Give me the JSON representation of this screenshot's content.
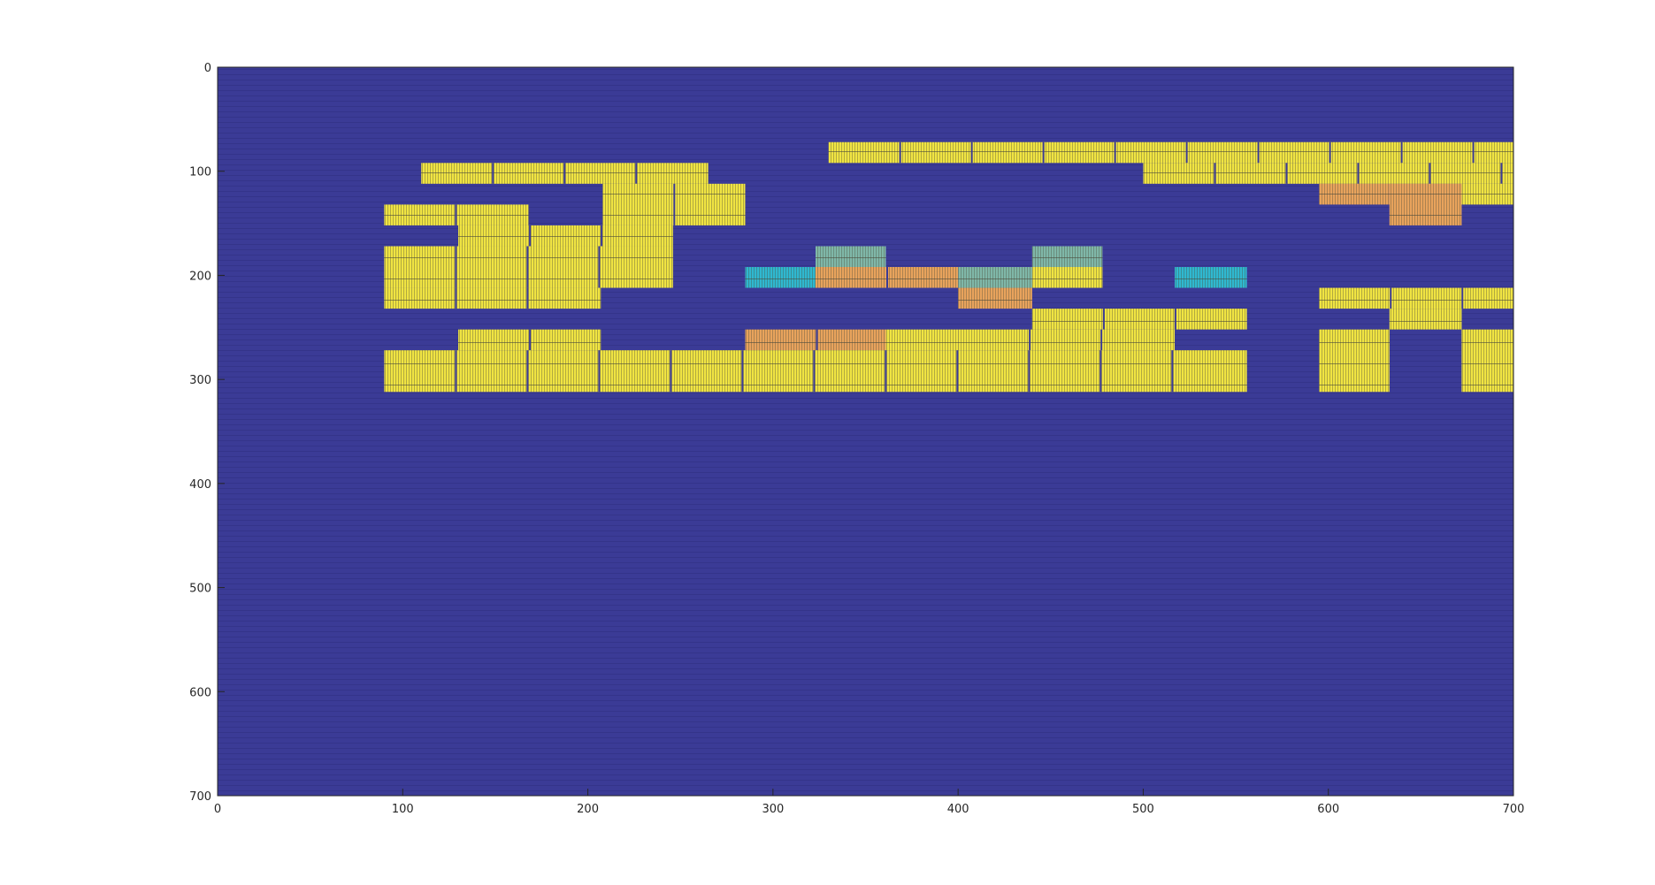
{
  "chart_data": {
    "type": "heatmap",
    "title": "",
    "xlabel": "",
    "ylabel": "",
    "xlim": [
      0,
      700
    ],
    "ylim": [
      0,
      700
    ],
    "y_direction": "reverse",
    "x_ticks": [
      0,
      100,
      200,
      300,
      400,
      500,
      600,
      700
    ],
    "y_ticks": [
      0,
      100,
      200,
      300,
      400,
      500,
      600,
      700
    ],
    "x_tick_labels": [
      "0",
      "100",
      "200",
      "300",
      "400",
      "500",
      "600",
      "700"
    ],
    "y_tick_labels": [
      "0",
      "100",
      "200",
      "300",
      "400",
      "500",
      "600",
      "700"
    ],
    "grid": false,
    "colors": {
      "background": "#3b3b96",
      "cell_yellow": "#f0e442",
      "cell_orange": "#e8a35c",
      "cell_cyan": "#2fb8d0",
      "cell_teal": "#7fb7a8"
    },
    "blocks": [
      {
        "x": [
          330,
          700
        ],
        "y": [
          72,
          92
        ],
        "color": "yellow"
      },
      {
        "x": [
          110,
          265
        ],
        "y": [
          92,
          112
        ],
        "color": "yellow"
      },
      {
        "x": [
          500,
          700
        ],
        "y": [
          92,
          112
        ],
        "color": "yellow"
      },
      {
        "x": [
          208,
          285
        ],
        "y": [
          112,
          152
        ],
        "color": "yellow"
      },
      {
        "x": [
          595,
          633
        ],
        "y": [
          112,
          132
        ],
        "color": "orange"
      },
      {
        "x": [
          633,
          672
        ],
        "y": [
          112,
          152
        ],
        "color": "orange"
      },
      {
        "x": [
          672,
          700
        ],
        "y": [
          112,
          132
        ],
        "color": "yellow"
      },
      {
        "x": [
          90,
          168
        ],
        "y": [
          132,
          152
        ],
        "color": "yellow"
      },
      {
        "x": [
          130,
          246
        ],
        "y": [
          152,
          172
        ],
        "color": "yellow"
      },
      {
        "x": [
          90,
          246
        ],
        "y": [
          172,
          212
        ],
        "color": "yellow"
      },
      {
        "x": [
          90,
          207
        ],
        "y": [
          212,
          232
        ],
        "color": "yellow"
      },
      {
        "x": [
          323,
          361
        ],
        "y": [
          172,
          192
        ],
        "color": "teal"
      },
      {
        "x": [
          440,
          478
        ],
        "y": [
          172,
          192
        ],
        "color": "teal"
      },
      {
        "x": [
          285,
          323
        ],
        "y": [
          192,
          212
        ],
        "color": "cyan"
      },
      {
        "x": [
          323,
          400
        ],
        "y": [
          192,
          212
        ],
        "color": "orange"
      },
      {
        "x": [
          400,
          440
        ],
        "y": [
          192,
          212
        ],
        "color": "teal"
      },
      {
        "x": [
          440,
          478
        ],
        "y": [
          192,
          212
        ],
        "color": "yellow"
      },
      {
        "x": [
          517,
          556
        ],
        "y": [
          192,
          212
        ],
        "color": "cyan"
      },
      {
        "x": [
          400,
          440
        ],
        "y": [
          212,
          232
        ],
        "color": "orange"
      },
      {
        "x": [
          595,
          700
        ],
        "y": [
          212,
          232
        ],
        "color": "yellow"
      },
      {
        "x": [
          440,
          556
        ],
        "y": [
          232,
          252
        ],
        "color": "yellow"
      },
      {
        "x": [
          633,
          672
        ],
        "y": [
          232,
          252
        ],
        "color": "yellow"
      },
      {
        "x": [
          130,
          207
        ],
        "y": [
          252,
          272
        ],
        "color": "yellow"
      },
      {
        "x": [
          285,
          361
        ],
        "y": [
          252,
          272
        ],
        "color": "orange"
      },
      {
        "x": [
          361,
          400
        ],
        "y": [
          252,
          272
        ],
        "color": "yellow"
      },
      {
        "x": [
          400,
          517
        ],
        "y": [
          252,
          272
        ],
        "color": "yellow"
      },
      {
        "x": [
          595,
          633
        ],
        "y": [
          252,
          312
        ],
        "color": "yellow"
      },
      {
        "x": [
          672,
          700
        ],
        "y": [
          252,
          312
        ],
        "color": "yellow"
      },
      {
        "x": [
          90,
          556
        ],
        "y": [
          272,
          312
        ],
        "color": "yellow"
      }
    ]
  }
}
